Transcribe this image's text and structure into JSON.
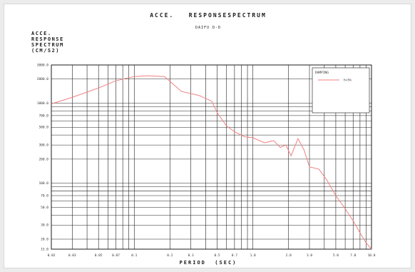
{
  "chart_data": {
    "type": "line",
    "title": "ACCE.   RESPONSESPECTRUM",
    "subtitle": "DAIFU D-D",
    "ylabel_lines": [
      "ACCE.",
      "RESPONSE",
      "SPECTRUM",
      "(CM/S2)"
    ],
    "xlabel": "PERIOD  (SEC)",
    "x_scale": "log",
    "y_scale": "log",
    "xlim": [
      0.02,
      10
    ],
    "ylim": [
      15,
      3000
    ],
    "x_ticks": [
      0.02,
      0.03,
      0.05,
      0.07,
      0.1,
      0.2,
      0.3,
      0.5,
      0.7,
      1,
      2,
      3,
      5,
      7,
      10
    ],
    "x_tick_labels": [
      "0.02",
      "0.03",
      "0.05",
      "0.07",
      "0.1",
      "0.2",
      "0.3",
      "0.5",
      "0.7",
      "1.0",
      "2.0",
      "3.0",
      "5.0",
      "7.0",
      "10.0"
    ],
    "y_ticks": [
      15,
      20,
      30,
      50,
      70,
      100,
      200,
      300,
      500,
      700,
      1000,
      2000,
      3000
    ],
    "y_tick_labels": [
      "15.0",
      "20.0",
      "30.0",
      "50.0",
      "70.0",
      "100.0",
      "200.0",
      "300.0",
      "500.0",
      "700.0",
      "1000.0",
      "2000.0",
      "3000.0"
    ],
    "grid": true,
    "legend_position": "top-right",
    "legend_title": "DAMPING",
    "series": [
      {
        "name": "h=5%",
        "color": "#f08080",
        "points": [
          [
            0.02,
            980
          ],
          [
            0.03,
            1180
          ],
          [
            0.05,
            1550
          ],
          [
            0.07,
            1900
          ],
          [
            0.1,
            2150
          ],
          [
            0.13,
            2200
          ],
          [
            0.18,
            2150
          ],
          [
            0.25,
            1400
          ],
          [
            0.35,
            1250
          ],
          [
            0.45,
            1060
          ],
          [
            0.5,
            760
          ],
          [
            0.6,
            520
          ],
          [
            0.7,
            440
          ],
          [
            0.85,
            380
          ],
          [
            1.0,
            370
          ],
          [
            1.25,
            320
          ],
          [
            1.5,
            340
          ],
          [
            1.7,
            280
          ],
          [
            1.9,
            300
          ],
          [
            2.1,
            220
          ],
          [
            2.4,
            360
          ],
          [
            2.7,
            260
          ],
          [
            3.0,
            160
          ],
          [
            3.6,
            150
          ],
          [
            4.2,
            110
          ],
          [
            5.0,
            70
          ],
          [
            6.0,
            48
          ],
          [
            7.0,
            34
          ],
          [
            8.0,
            24
          ],
          [
            9.0,
            18
          ],
          [
            10.0,
            15
          ]
        ]
      }
    ]
  }
}
